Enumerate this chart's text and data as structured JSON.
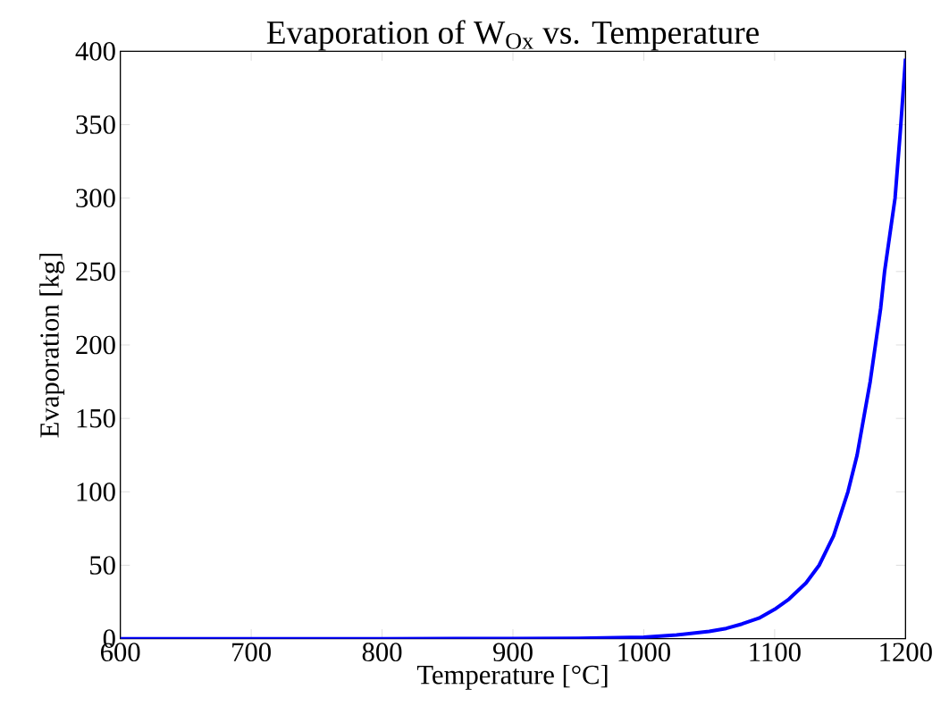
{
  "chart_data": {
    "type": "line",
    "title": "Evaporation of W$_{Ox}$ vs. Temperature",
    "xlabel": "Temperature [°C]",
    "ylabel": "Evaporation [kg]",
    "x": [
      600,
      700,
      800,
      900,
      950,
      1000,
      1025,
      1050,
      1063,
      1075,
      1088,
      1100,
      1111,
      1124,
      1134,
      1145,
      1156,
      1163,
      1168,
      1173,
      1177,
      1181,
      1184,
      1188,
      1192,
      1196,
      1200
    ],
    "series": [
      {
        "color": "#0000ff",
        "values": [
          0,
          0,
          0,
          0.1,
          0.3,
          1,
          2.5,
          5,
          7,
          10,
          14,
          20,
          27,
          38,
          50,
          70,
          100,
          125,
          150,
          175,
          200,
          225,
          250,
          275,
          300,
          345,
          395
        ]
      }
    ],
    "xlim": [
      600,
      1200
    ],
    "ylim": [
      0,
      400
    ],
    "xticks": [
      600,
      700,
      800,
      900,
      1000,
      1100,
      1200
    ],
    "yticks": [
      0,
      50,
      100,
      150,
      200,
      250,
      300,
      350,
      400
    ],
    "grid": false,
    "marker": "none",
    "line_style": "solid"
  }
}
